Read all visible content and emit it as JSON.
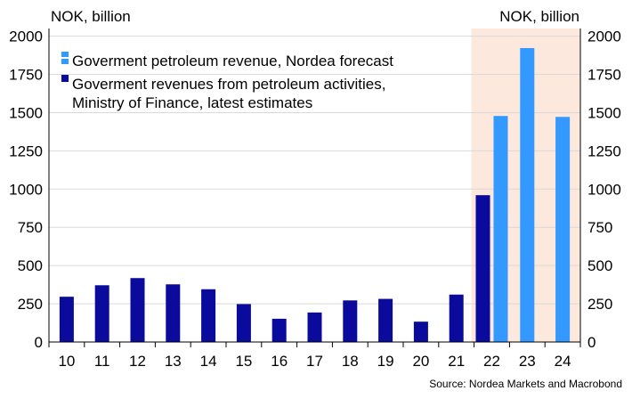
{
  "chart_data": {
    "type": "bar",
    "y_unit_left": "NOK, billion",
    "y_unit_right": "NOK, billion",
    "categories": [
      "10",
      "11",
      "12",
      "13",
      "14",
      "15",
      "16",
      "17",
      "18",
      "19",
      "20",
      "21",
      "22",
      "23",
      "24"
    ],
    "ylim": [
      0,
      2050
    ],
    "yticks": [
      0,
      250,
      500,
      750,
      1000,
      1250,
      1500,
      1750,
      2000
    ],
    "grid": true,
    "legend_position": "top-left",
    "shaded_region": {
      "from": "22",
      "to": "24",
      "color": "#fce8dc"
    },
    "series": [
      {
        "name": "Goverment revenues from petroleum activities, Ministry of Finance, latest estimates",
        "legend_lines": [
          "Goverment revenues from petroleum activities,",
          "Ministry of Finance, latest estimates"
        ],
        "color": "#0a0a9c",
        "marker": "solid",
        "values": [
          296,
          371,
          418,
          377,
          345,
          248,
          152,
          193,
          272,
          282,
          133,
          310,
          960,
          null,
          null
        ]
      },
      {
        "name": "Goverment petroleum revenue, Nordea forecast",
        "legend_lines": [
          "Goverment petroleum revenue, Nordea forecast"
        ],
        "color": "#3399ff",
        "marker": "split",
        "values": [
          null,
          null,
          null,
          null,
          null,
          null,
          null,
          null,
          null,
          null,
          null,
          null,
          1478,
          1922,
          1472
        ]
      }
    ],
    "source": "Source: Nordea Markets and Macrobond"
  }
}
